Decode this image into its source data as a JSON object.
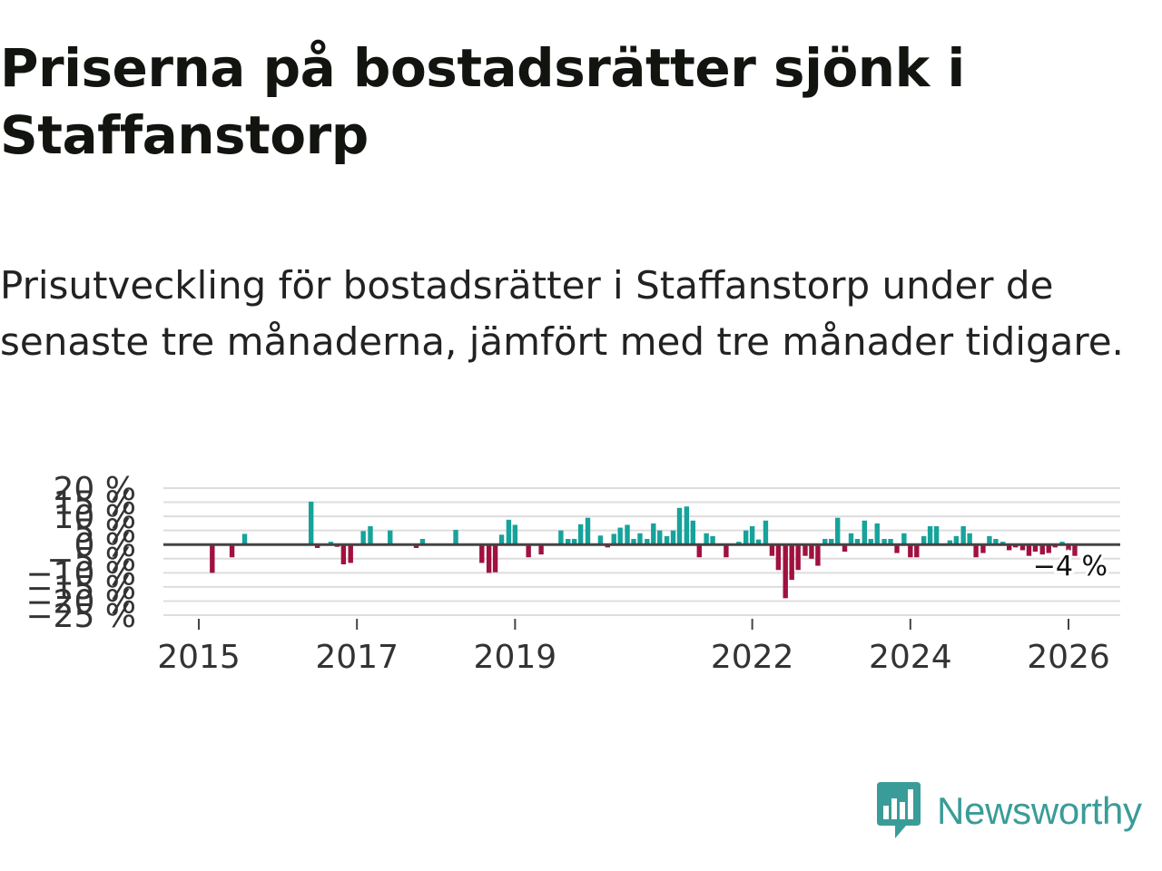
{
  "title": "Priserna på bostadsrätter sjönk i Staffanstorp",
  "subtitle": "Prisutveckling för bostadsrätter i Staffanstorp under de senaste tre månaderna, jämfört med tre månader tidigare.",
  "brand": {
    "name": "Newsworthy",
    "color": "#3a9c98",
    "icon": "bar-chart-speech-bubble-icon"
  },
  "chart_data": {
    "type": "bar",
    "y_unit": "%",
    "ylim": [
      -25,
      20
    ],
    "y_ticks": [
      20,
      15,
      10,
      5,
      0,
      -5,
      -10,
      -15,
      -20,
      -25
    ],
    "y_tick_labels": [
      "20 %",
      "15 %",
      "10 %",
      "5 %",
      "0 %",
      "−5 %",
      "−10 %",
      "−15 %",
      "−20 %",
      "−25 %"
    ],
    "x_ticks": [
      2015,
      2017,
      2019,
      2022,
      2024,
      2026
    ],
    "x_tick_labels": [
      "2015",
      "2017",
      "2019",
      "2022",
      "2024",
      "2026"
    ],
    "grid": true,
    "colors": {
      "positive": "#16a39b",
      "negative": "#a0113f",
      "zero_line": "#444444",
      "grid": "#dddddd"
    },
    "annotation": {
      "text": "−4 %",
      "x": 2026.4
    },
    "x": [
      2015.17,
      2015.42,
      2015.58,
      2016.42,
      2016.5,
      2016.67,
      2016.75,
      2016.83,
      2016.92,
      2017.08,
      2017.17,
      2017.42,
      2017.75,
      2017.83,
      2018.25,
      2018.58,
      2018.67,
      2018.75,
      2018.83,
      2018.92,
      2019.0,
      2019.17,
      2019.33,
      2019.58,
      2019.67,
      2019.75,
      2019.83,
      2019.92,
      2020.08,
      2020.17,
      2020.25,
      2020.33,
      2020.42,
      2020.5,
      2020.58,
      2020.67,
      2020.75,
      2020.83,
      2020.92,
      2021.0,
      2021.08,
      2021.17,
      2021.25,
      2021.33,
      2021.42,
      2021.5,
      2021.67,
      2021.83,
      2021.92,
      2022.0,
      2022.08,
      2022.17,
      2022.25,
      2022.33,
      2022.42,
      2022.5,
      2022.58,
      2022.67,
      2022.75,
      2022.83,
      2022.92,
      2023.0,
      2023.08,
      2023.17,
      2023.25,
      2023.33,
      2023.42,
      2023.5,
      2023.58,
      2023.67,
      2023.75,
      2023.83,
      2023.92,
      2024.0,
      2024.08,
      2024.17,
      2024.25,
      2024.33,
      2024.5,
      2024.58,
      2024.67,
      2024.75,
      2024.83,
      2024.92,
      2025.0,
      2025.08,
      2025.17,
      2025.25,
      2025.33,
      2025.42,
      2025.5,
      2025.58,
      2025.67,
      2025.75,
      2025.83,
      2025.92,
      2026.0,
      2026.08
    ],
    "values": [
      -10.0,
      -4.5,
      3.8,
      15.2,
      -1.2,
      1.0,
      -0.8,
      -7.0,
      -6.5,
      4.8,
      6.5,
      5.0,
      -1.2,
      2.0,
      5.2,
      -6.5,
      -10.0,
      -9.8,
      3.5,
      8.8,
      7.0,
      -4.5,
      -3.5,
      5.0,
      2.0,
      2.0,
      7.2,
      9.5,
      3.2,
      -1.0,
      3.8,
      6.0,
      7.0,
      2.0,
      4.0,
      2.0,
      7.5,
      5.0,
      3.0,
      5.0,
      13.0,
      13.5,
      8.5,
      -4.5,
      4.0,
      3.0,
      -4.5,
      1.0,
      5.0,
      6.5,
      1.8,
      8.5,
      -4.0,
      -9.0,
      -19.0,
      -12.5,
      -9.0,
      -4.0,
      -5.0,
      -7.5,
      2.0,
      2.0,
      9.5,
      -2.5,
      4.0,
      2.0,
      8.5,
      2.0,
      7.5,
      2.0,
      2.0,
      -3.0,
      4.0,
      -4.5,
      -4.5,
      3.0,
      6.5,
      6.5,
      1.5,
      3.0,
      6.5,
      4.0,
      -4.5,
      -3.0,
      3.0,
      2.0,
      1.0,
      -2.0,
      -1.0,
      -2.0,
      -4.0,
      -2.5,
      -3.5,
      -3.0,
      -1.0,
      1.0,
      -2.0,
      -4.0
    ]
  }
}
